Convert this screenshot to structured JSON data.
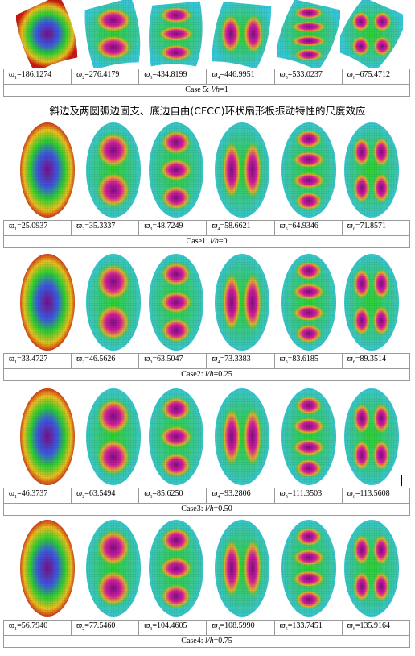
{
  "heading": "斜边及两圆弧边固支、底边自由(CFCC)环状扇形板振动特性的尺度效应",
  "omega_symbol": "ϖ",
  "caption_prefix": "Case",
  "ratio_label": "l/h",
  "cases": [
    {
      "kind": "sector",
      "case_number": "5",
      "ratio_value": "1",
      "frequencies": [
        {
          "index": "1",
          "value": "=186.1274"
        },
        {
          "index": "2",
          "value": "=276.4179"
        },
        {
          "index": "3",
          "value": "=434.8199"
        },
        {
          "index": "4",
          "value": "=446.9951"
        },
        {
          "index": "5",
          "value": "=533.0237"
        },
        {
          "index": "6",
          "value": "=675.4712"
        }
      ]
    },
    {
      "kind": "ellipse",
      "case_number": "1",
      "ratio_value": "0",
      "frequencies": [
        {
          "index": "1",
          "value": "=25.0937"
        },
        {
          "index": "2",
          "value": "=35.3337"
        },
        {
          "index": "3",
          "value": "=48.7249"
        },
        {
          "index": "4",
          "value": "=58.6621"
        },
        {
          "index": "5",
          "value": "=64.9346"
        },
        {
          "index": "6",
          "value": "=71.8571"
        }
      ]
    },
    {
      "kind": "ellipse",
      "case_number": "2",
      "ratio_value": "0.25",
      "frequencies": [
        {
          "index": "1",
          "value": "=33.4727"
        },
        {
          "index": "2",
          "value": "=46.5626"
        },
        {
          "index": "3",
          "value": "=63.5047"
        },
        {
          "index": "4",
          "value": "=73.3383"
        },
        {
          "index": "5",
          "value": "=83.6185"
        },
        {
          "index": "6",
          "value": "=89.3514"
        }
      ]
    },
    {
      "kind": "ellipse",
      "case_number": "3",
      "ratio_value": "0.50",
      "frequencies": [
        {
          "index": "1",
          "value": "=46.3737"
        },
        {
          "index": "2",
          "value": "=63.5494"
        },
        {
          "index": "3",
          "value": "=85.6250"
        },
        {
          "index": "4",
          "value": "=93.2806"
        },
        {
          "index": "5",
          "value": "=111.3503"
        },
        {
          "index": "6",
          "value": "=113.5608"
        }
      ]
    },
    {
      "kind": "ellipse",
      "case_number": "4",
      "ratio_value": "0.75",
      "frequencies": [
        {
          "index": "1",
          "value": "=56.7940"
        },
        {
          "index": "2",
          "value": "=77.5460"
        },
        {
          "index": "3",
          "value": "=104.4605"
        },
        {
          "index": "4",
          "value": "=108.5990"
        },
        {
          "index": "5",
          "value": "=133.7451"
        },
        {
          "index": "6",
          "value": "=135.9164"
        }
      ]
    }
  ],
  "mode_shapes": [
    {
      "type": "1",
      "label": "first bending mode"
    },
    {
      "type": "2v",
      "label": "two lobes stacked vertically"
    },
    {
      "type": "3v",
      "label": "three lobes stacked vertically"
    },
    {
      "type": "2h",
      "label": "two lobes side by side"
    },
    {
      "type": "4v",
      "label": "four lobes stacked vertically"
    },
    {
      "type": "2x2",
      "label": "two by two lobes"
    }
  ],
  "colors": {
    "hot": "#7a0f86",
    "warm": "#d21f9c",
    "mid": "#2ed030",
    "edge": "#c81a12",
    "cool": "#36c7d6",
    "table_border": "#9a9a9a"
  }
}
